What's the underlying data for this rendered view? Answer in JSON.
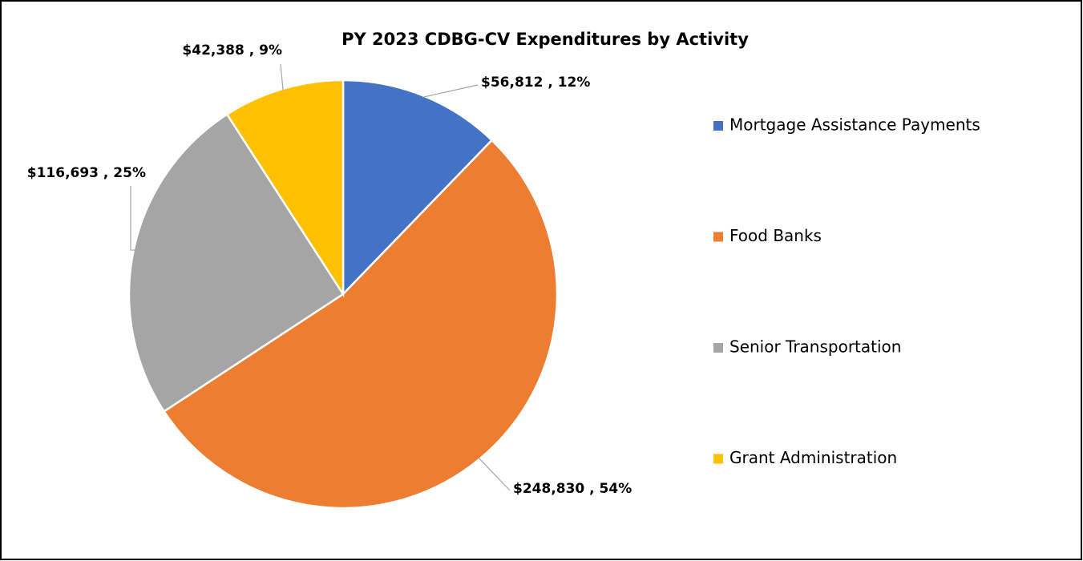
{
  "chart_data": {
    "type": "pie",
    "title": "PY 2023 CDBG-CV Expenditures by Activity",
    "categories": [
      "Mortgage Assistance Payments",
      "Food Banks",
      "Senior Transportation",
      "Grant Administration"
    ],
    "values": [
      56812,
      248830,
      116693,
      42388
    ],
    "value_labels": [
      "$56,812 , 12%",
      "$248,830 , 54%",
      "$116,693 , 25%",
      "$42,388 , 9%"
    ],
    "colors": [
      "#4472c4",
      "#ed7d31",
      "#a5a5a5",
      "#ffc000"
    ],
    "legend": "right"
  }
}
